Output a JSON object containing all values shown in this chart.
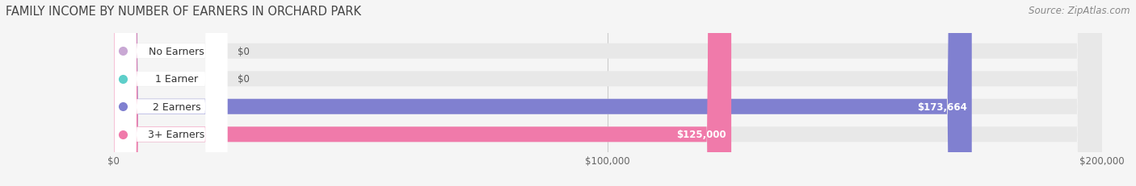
{
  "title": "FAMILY INCOME BY NUMBER OF EARNERS IN ORCHARD PARK",
  "source": "Source: ZipAtlas.com",
  "categories": [
    "No Earners",
    "1 Earner",
    "2 Earners",
    "3+ Earners"
  ],
  "values": [
    0,
    0,
    173664,
    125000
  ],
  "bar_colors": [
    "#c9a8d4",
    "#5ecfca",
    "#8080d0",
    "#f07aaa"
  ],
  "value_labels": [
    "$0",
    "$0",
    "$173,664",
    "$125,000"
  ],
  "xlim": [
    0,
    200000
  ],
  "xticks": [
    0,
    100000,
    200000
  ],
  "xtick_labels": [
    "$0",
    "$100,000",
    "$200,000"
  ],
  "bg_color": "#f5f5f5",
  "bar_bg_color": "#e8e8e8",
  "title_fontsize": 10.5,
  "source_fontsize": 8.5,
  "label_fontsize": 9,
  "value_fontsize": 8.5,
  "bar_height": 0.55
}
